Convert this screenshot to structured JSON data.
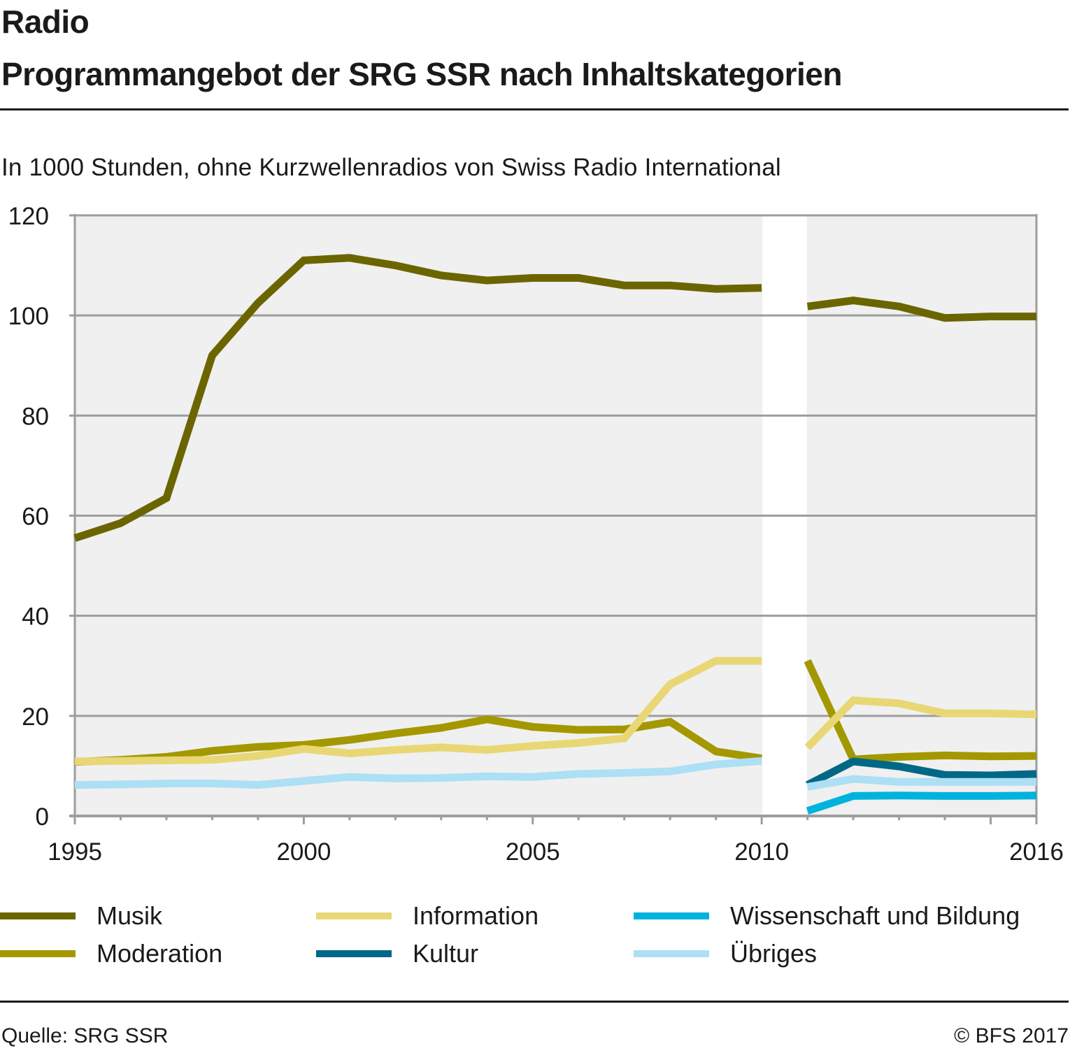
{
  "header": {
    "title_line1": "Radio",
    "title_line2": "Programmangebot der SRG SSR nach Inhaltskategorien",
    "subtitle": "In 1000 Stunden, ohne Kurzwellenradios von Swiss Radio International"
  },
  "footer": {
    "source": "Quelle: SRG SSR",
    "copyright": "© BFS 2017"
  },
  "chart_data": {
    "type": "line",
    "title": "Programmangebot der SRG SSR nach Inhaltskategorien",
    "subtitle": "In 1000 Stunden, ohne Kurzwellenradios von Swiss Radio International",
    "xlabel": "",
    "ylabel": "",
    "x": [
      1995,
      1996,
      1997,
      1998,
      1999,
      2000,
      2001,
      2002,
      2003,
      2004,
      2005,
      2006,
      2007,
      2008,
      2009,
      2010,
      2011,
      2012,
      2013,
      2014,
      2015,
      2016
    ],
    "xlim": [
      1995,
      2016
    ],
    "ylim": [
      0,
      120
    ],
    "x_ticks": [
      "1995",
      "2000",
      "2005",
      "2010",
      "2016"
    ],
    "y_ticks": [
      "0",
      "20",
      "40",
      "60",
      "80",
      "100",
      "120"
    ],
    "grid": true,
    "series_break": "Unterbruch zwischen 2010 und 2011",
    "legend_position": "bottom",
    "series": [
      {
        "name": "Musik",
        "color": "#6b6500",
        "values": [
          55.5,
          58.5,
          63.5,
          92,
          102.5,
          111,
          111.5,
          110,
          108,
          107,
          107.5,
          107.5,
          106,
          106,
          105.3,
          105.5,
          101.8,
          103,
          101.8,
          99.5,
          99.8,
          99.8
        ]
      },
      {
        "name": "Moderation",
        "color": "#a39800",
        "values": [
          10.8,
          11.2,
          11.8,
          13,
          13.8,
          14.2,
          15.2,
          16.5,
          17.6,
          19.3,
          17.8,
          17.2,
          17.3,
          18.8,
          12.9,
          11.5,
          31,
          11.3,
          11.8,
          12.1,
          11.9,
          12.0
        ]
      },
      {
        "name": "Information",
        "color": "#e8d774",
        "values": [
          10.9,
          11,
          11.1,
          11.2,
          12,
          13.4,
          12.5,
          13.2,
          13.7,
          13.2,
          14,
          14.6,
          15.5,
          26.3,
          31,
          31,
          13.7,
          23.1,
          22.5,
          20.5,
          20.5,
          20.3
        ]
      },
      {
        "name": "Kultur",
        "color": "#006887",
        "values": [
          null,
          null,
          null,
          null,
          null,
          null,
          null,
          null,
          null,
          null,
          null,
          null,
          null,
          null,
          null,
          null,
          6.2,
          10.9,
          9.9,
          8.2,
          8.1,
          8.4
        ]
      },
      {
        "name": "Wissenschaft und Bildung",
        "color": "#00b3dc",
        "values": [
          null,
          null,
          null,
          null,
          null,
          null,
          null,
          null,
          null,
          null,
          null,
          null,
          null,
          null,
          null,
          null,
          1.0,
          4.0,
          4.1,
          4.0,
          4.0,
          4.1
        ]
      },
      {
        "name": "Übriges",
        "color": "#addff5",
        "values": [
          6.2,
          6.3,
          6.5,
          6.5,
          6.2,
          7,
          7.8,
          7.5,
          7.6,
          7.9,
          7.8,
          8.4,
          8.6,
          8.9,
          10.3,
          11,
          5.8,
          7.4,
          6.8,
          6.8,
          6.8,
          6.8
        ]
      }
    ]
  },
  "legend": {
    "items": [
      {
        "label": "Musik",
        "color": "#6b6500"
      },
      {
        "label": "Moderation",
        "color": "#a39800"
      },
      {
        "label": "Information",
        "color": "#e8d774"
      },
      {
        "label": "Kultur",
        "color": "#006887"
      },
      {
        "label": "Wissenschaft und Bildung",
        "color": "#00b3dc"
      },
      {
        "label": "Übriges",
        "color": "#addff5"
      }
    ]
  }
}
